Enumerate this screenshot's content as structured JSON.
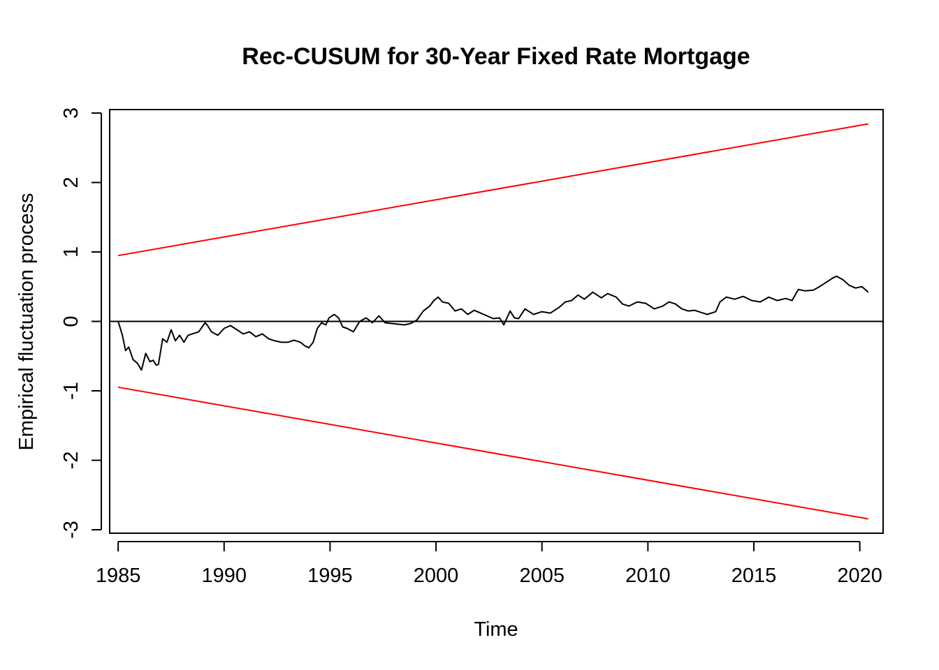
{
  "chart_data": {
    "type": "line",
    "title": "Rec-CUSUM for 30-Year Fixed Rate Mortgage",
    "xlabel": "Time",
    "ylabel": "Empirical fluctuation process",
    "xlim": [
      1984.6,
      2021.1
    ],
    "ylim": [
      -3.05,
      3.05
    ],
    "x_ticks": [
      1985,
      1990,
      1995,
      2000,
      2005,
      2010,
      2015,
      2020
    ],
    "y_ticks": [
      -3,
      -2,
      -1,
      0,
      1,
      2,
      3
    ],
    "x_tick_labels": [
      "1985",
      "1990",
      "1995",
      "2000",
      "2005",
      "2010",
      "2015",
      "2020"
    ],
    "y_tick_labels": [
      "-3",
      "-2",
      "-1",
      "0",
      "1",
      "2",
      "3"
    ],
    "grid": false,
    "zero_line": 0,
    "series": [
      {
        "color": "#000000",
        "x": [
          1985.0,
          1985.1,
          1985.2,
          1985.35,
          1985.5,
          1985.7,
          1985.9,
          1986.1,
          1986.3,
          1986.5,
          1986.65,
          1986.8,
          1986.9,
          1987.1,
          1987.3,
          1987.5,
          1987.7,
          1987.9,
          1988.1,
          1988.3,
          1988.5,
          1988.8,
          1989.1,
          1989.2,
          1989.4,
          1989.7,
          1990.0,
          1990.3,
          1990.6,
          1990.9,
          1991.2,
          1991.5,
          1991.8,
          1992.1,
          1992.4,
          1992.7,
          1993.0,
          1993.3,
          1993.6,
          1993.8,
          1994.0,
          1994.2,
          1994.4,
          1994.6,
          1994.8,
          1994.95,
          1995.2,
          1995.4,
          1995.6,
          1995.8,
          1996.1,
          1996.4,
          1996.7,
          1997.0,
          1997.3,
          1997.6,
          1997.9,
          1998.2,
          1998.5,
          1998.8,
          1999.1,
          1999.4,
          1999.7,
          1999.9,
          2000.1,
          2000.3,
          2000.6,
          2000.9,
          2001.2,
          2001.5,
          2001.8,
          2002.1,
          2002.4,
          2002.7,
          2003.0,
          2003.2,
          2003.5,
          2003.7,
          2003.9,
          2004.2,
          2004.6,
          2005.0,
          2005.4,
          2005.8,
          2006.1,
          2006.4,
          2006.7,
          2007.0,
          2007.4,
          2007.8,
          2008.1,
          2008.5,
          2008.8,
          2009.1,
          2009.5,
          2009.9,
          2010.3,
          2010.7,
          2011.0,
          2011.3,
          2011.6,
          2011.9,
          2012.2,
          2012.5,
          2012.8,
          2013.2,
          2013.4,
          2013.7,
          2014.1,
          2014.5,
          2014.9,
          2015.3,
          2015.7,
          2016.1,
          2016.5,
          2016.8,
          2017.1,
          2017.4,
          2017.8,
          2018.1,
          2018.4,
          2018.7,
          2018.9,
          2019.2,
          2019.5,
          2019.8,
          2020.1,
          2020.4
        ],
        "y": [
          0.0,
          -0.1,
          -0.2,
          -0.42,
          -0.37,
          -0.55,
          -0.6,
          -0.7,
          -0.46,
          -0.58,
          -0.56,
          -0.63,
          -0.62,
          -0.25,
          -0.3,
          -0.12,
          -0.28,
          -0.2,
          -0.3,
          -0.2,
          -0.18,
          -0.15,
          -0.02,
          -0.05,
          -0.15,
          -0.2,
          -0.1,
          -0.06,
          -0.12,
          -0.18,
          -0.15,
          -0.22,
          -0.18,
          -0.25,
          -0.28,
          -0.3,
          -0.3,
          -0.27,
          -0.3,
          -0.35,
          -0.38,
          -0.3,
          -0.1,
          -0.02,
          -0.05,
          0.05,
          0.1,
          0.05,
          -0.08,
          -0.1,
          -0.15,
          0.0,
          0.05,
          -0.02,
          0.08,
          -0.02,
          -0.03,
          -0.04,
          -0.05,
          -0.03,
          0.02,
          0.15,
          0.22,
          0.3,
          0.35,
          0.28,
          0.26,
          0.15,
          0.18,
          0.1,
          0.16,
          0.12,
          0.08,
          0.04,
          0.05,
          -0.05,
          0.15,
          0.05,
          0.04,
          0.18,
          0.1,
          0.14,
          0.12,
          0.2,
          0.28,
          0.3,
          0.38,
          0.32,
          0.42,
          0.34,
          0.4,
          0.35,
          0.25,
          0.22,
          0.28,
          0.26,
          0.18,
          0.22,
          0.28,
          0.25,
          0.18,
          0.15,
          0.16,
          0.13,
          0.1,
          0.14,
          0.28,
          0.35,
          0.32,
          0.36,
          0.3,
          0.28,
          0.35,
          0.3,
          0.33,
          0.3,
          0.46,
          0.44,
          0.45,
          0.5,
          0.56,
          0.62,
          0.65,
          0.6,
          0.52,
          0.48,
          0.5,
          0.42
        ]
      },
      {
        "color": "#ff0000",
        "x": [
          1985.0,
          2020.4
        ],
        "y": [
          0.948,
          2.844
        ]
      },
      {
        "color": "#ff0000",
        "x": [
          1985.0,
          2020.4
        ],
        "y": [
          -0.948,
          -2.844
        ]
      }
    ]
  }
}
